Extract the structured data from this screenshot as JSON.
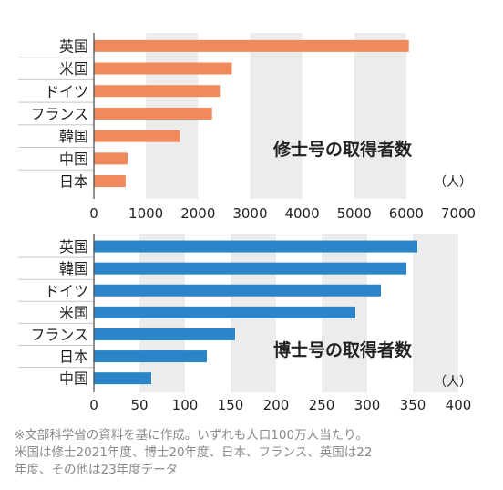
{
  "chart_data": [
    {
      "type": "bar",
      "orientation": "horizontal",
      "title": "修士号の取得者数",
      "unit": "（人）",
      "categories": [
        "英国",
        "米国",
        "ドイツ",
        "フランス",
        "韓国",
        "中国",
        "日本"
      ],
      "values": [
        6050,
        2650,
        2420,
        2270,
        1650,
        650,
        610
      ],
      "xlim": [
        0,
        7000
      ],
      "ticks": [
        "0",
        "1000",
        "2000",
        "3000",
        "4000",
        "5000",
        "6000",
        "7000"
      ],
      "bar_color": "#f08a5d"
    },
    {
      "type": "bar",
      "orientation": "horizontal",
      "title": "博士号の取得者数",
      "unit": "（人）",
      "categories": [
        "英国",
        "韓国",
        "ドイツ",
        "米国",
        "フランス",
        "日本",
        "中国"
      ],
      "values": [
        355,
        343,
        315,
        287,
        155,
        124,
        63
      ],
      "xlim": [
        0,
        400
      ],
      "ticks": [
        "0",
        "50",
        "100",
        "150",
        "200",
        "250",
        "300",
        "350",
        "400"
      ],
      "bar_color": "#2a86c8"
    }
  ],
  "notes": [
    "※文部科学省の資料を基に作成。いずれも人口100万人当たり。",
    "米国は修士2021年度、博士20年度、日本、フランス、英国は22",
    "年度、その他は23年度データ"
  ],
  "colors": {
    "band": "#ececec",
    "divider": "#c8c8c8"
  }
}
